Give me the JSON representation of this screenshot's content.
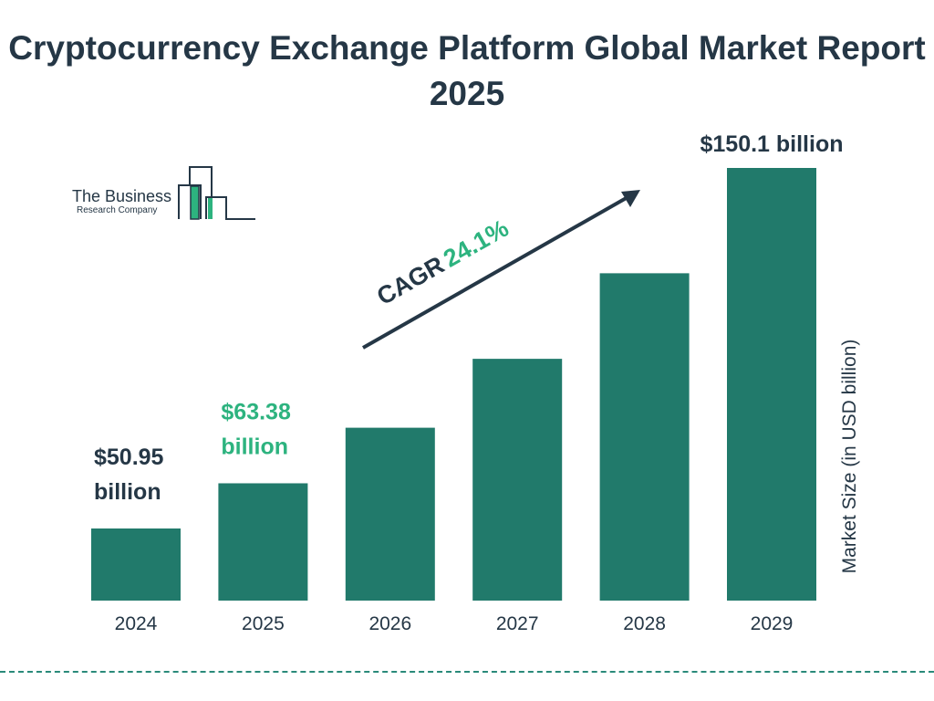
{
  "title": "Cryptocurrency Exchange Platform Global Market Report 2025",
  "logo": {
    "line1": "The Business",
    "line2": "Research Company"
  },
  "colors": {
    "bar": "#217a6b",
    "text": "#253746",
    "highlight": "#2db37f"
  },
  "chart_data": {
    "type": "bar",
    "title": "Cryptocurrency Exchange Platform Global Market Report 2025",
    "xlabel": "",
    "ylabel": "Market Size (in USD billion)",
    "categories": [
      "2024",
      "2025",
      "2026",
      "2027",
      "2028",
      "2029"
    ],
    "values": [
      50.95,
      63.38,
      78.66,
      97.61,
      121.14,
      150.1
    ],
    "data_labels": [
      {
        "index": 0,
        "line1": "$50.95",
        "line2": "billion"
      },
      {
        "index": 1,
        "line1": "$63.38",
        "line2": "billion"
      },
      {
        "index": 5,
        "line1": "$150.1 billion",
        "line2": ""
      }
    ],
    "annotation": {
      "label": "CAGR",
      "value": "24.1%"
    },
    "grid": false
  }
}
